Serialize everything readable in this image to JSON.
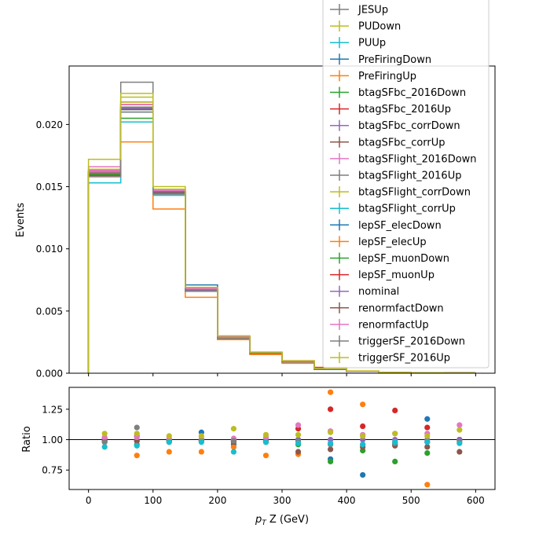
{
  "figure": {
    "main_ylabel": "Events",
    "ratio_ylabel": "Ratio",
    "xlabel_prefix": "p",
    "xlabel_sub": "T",
    "xlabel_suffix": " Z (GeV)"
  },
  "chart_data": [
    {
      "type": "line",
      "step": true,
      "xlabel": "",
      "ylabel": "Events",
      "xlim": [
        -30,
        630
      ],
      "ylim": [
        0,
        0.0247
      ],
      "xticks": [
        0,
        100,
        200,
        300,
        400,
        500,
        600
      ],
      "yticks": [
        0.0,
        0.005,
        0.01,
        0.015,
        0.02
      ],
      "ytick_labels": [
        "0.000",
        "0.005",
        "0.010",
        "0.015",
        "0.020"
      ],
      "bin_edges": [
        0,
        50,
        100,
        150,
        200,
        250,
        300,
        350,
        400,
        450,
        500,
        550,
        600
      ],
      "legend_position": "top-right",
      "series": [
        {
          "name": "JESUp",
          "color": "#7f7f7f",
          "values": [
            0.0159,
            0.0234,
            0.0144,
            0.0066,
            0.0029,
            0.0016,
            0.0009,
            0.00035,
            0.00015,
            7e-05,
            4e-05,
            2e-05
          ]
        },
        {
          "name": "PUDown",
          "color": "#bcbd22",
          "values": [
            0.0164,
            0.0222,
            0.0148,
            0.0068,
            0.003,
            0.0017,
            0.0009,
            0.00036,
            0.00016,
            7e-05,
            4e-05,
            2e-05
          ]
        },
        {
          "name": "PUUp",
          "color": "#17becf",
          "values": [
            0.0153,
            0.0202,
            0.0143,
            0.0066,
            0.0027,
            0.0016,
            0.0009,
            0.00034,
            0.00015,
            7e-05,
            4e-05,
            2e-05
          ]
        },
        {
          "name": "PreFiringDown",
          "color": "#1f77b4",
          "values": [
            0.016,
            0.0212,
            0.0146,
            0.0071,
            0.0028,
            0.0016,
            0.0009,
            0.00033,
            0.00014,
            7e-05,
            4e-05,
            2e-05
          ]
        },
        {
          "name": "PreFiringUp",
          "color": "#ff7f0e",
          "values": [
            0.0158,
            0.0186,
            0.0132,
            0.0061,
            0.0027,
            0.0015,
            0.0008,
            0.00047,
            0.00018,
            6e-05,
            3e-05,
            2e-05
          ]
        },
        {
          "name": "btagSFbc_2016Down",
          "color": "#2ca02c",
          "values": [
            0.0162,
            0.0205,
            0.0145,
            0.0067,
            0.0029,
            0.0016,
            0.0009,
            0.00031,
            0.00015,
            6e-05,
            4e-05,
            2e-05
          ]
        },
        {
          "name": "btagSFbc_2016Up",
          "color": "#d62728",
          "values": [
            0.0162,
            0.0218,
            0.0146,
            0.0067,
            0.0029,
            0.0016,
            0.0009,
            0.00044,
            0.00017,
            8e-05,
            4e-05,
            2e-05
          ]
        },
        {
          "name": "btagSFbc_corrDown",
          "color": "#9467bd",
          "values": [
            0.0161,
            0.0212,
            0.0146,
            0.0067,
            0.0029,
            0.0016,
            0.0009,
            0.00036,
            0.00016,
            7e-05,
            4e-05,
            2e-05
          ]
        },
        {
          "name": "btagSFbc_corrUp",
          "color": "#8c564b",
          "values": [
            0.0161,
            0.0214,
            0.0146,
            0.0067,
            0.0029,
            0.0016,
            0.0009,
            0.00036,
            0.00016,
            7e-05,
            4e-05,
            2e-05
          ]
        },
        {
          "name": "btagSFlight_2016Down",
          "color": "#e377c2",
          "values": [
            0.0166,
            0.0216,
            0.0147,
            0.0067,
            0.0029,
            0.0016,
            0.001,
            0.00038,
            0.00016,
            7e-05,
            4e-05,
            2e-05
          ]
        },
        {
          "name": "btagSFlight_2016Up",
          "color": "#7f7f7f",
          "values": [
            0.0161,
            0.0214,
            0.0146,
            0.0067,
            0.0029,
            0.0016,
            0.0009,
            0.00036,
            0.00016,
            7e-05,
            4e-05,
            2e-05
          ]
        },
        {
          "name": "btagSFlight_corrDown",
          "color": "#bcbd22",
          "values": [
            0.0162,
            0.0218,
            0.0147,
            0.0067,
            0.0029,
            0.0016,
            0.0009,
            0.00036,
            0.00016,
            7e-05,
            4e-05,
            2e-05
          ]
        },
        {
          "name": "btagSFlight_corrUp",
          "color": "#17becf",
          "values": [
            0.016,
            0.021,
            0.0145,
            0.0066,
            0.0028,
            0.0016,
            0.0009,
            0.00035,
            0.00015,
            7e-05,
            4e-05,
            2e-05
          ]
        },
        {
          "name": "lepSF_elecDown",
          "color": "#1f77b4",
          "values": [
            0.0161,
            0.0213,
            0.0146,
            0.0067,
            0.0029,
            0.0016,
            0.0009,
            0.00033,
            0.00014,
            7e-05,
            4e-05,
            2e-05
          ]
        },
        {
          "name": "lepSF_elecUp",
          "color": "#ff7f0e",
          "values": [
            0.0162,
            0.0216,
            0.0147,
            0.0067,
            0.0029,
            0.0016,
            0.0009,
            0.00038,
            0.00016,
            7e-05,
            4e-05,
            2e-05
          ]
        },
        {
          "name": "lepSF_muonDown",
          "color": "#2ca02c",
          "values": [
            0.016,
            0.0212,
            0.0145,
            0.0066,
            0.0028,
            0.0016,
            0.0009,
            0.0003,
            0.00015,
            6e-05,
            4e-05,
            2e-05
          ]
        },
        {
          "name": "lepSF_muonUp",
          "color": "#d62728",
          "values": [
            0.0163,
            0.0216,
            0.0147,
            0.0068,
            0.0029,
            0.0016,
            0.0009,
            0.00039,
            0.00017,
            8e-05,
            4e-05,
            2e-05
          ]
        },
        {
          "name": "nominal",
          "color": "#9467bd",
          "values": [
            0.0161,
            0.0213,
            0.0146,
            0.0067,
            0.0029,
            0.0016,
            0.0009,
            0.00036,
            0.00016,
            7e-05,
            4e-05,
            2e-05
          ]
        },
        {
          "name": "renormfactDown",
          "color": "#8c564b",
          "values": [
            0.0159,
            0.0212,
            0.0145,
            0.0066,
            0.0028,
            0.0016,
            0.0009,
            0.00034,
            0.00015,
            7e-05,
            4e-05,
            2e-05
          ]
        },
        {
          "name": "renormfactUp",
          "color": "#e377c2",
          "values": [
            0.0163,
            0.0216,
            0.0147,
            0.0068,
            0.0029,
            0.0016,
            0.001,
            0.00038,
            0.00017,
            7e-05,
            4e-05,
            2e-05
          ]
        },
        {
          "name": "triggerSF_2016Down",
          "color": "#7f7f7f",
          "values": [
            0.0158,
            0.021,
            0.0144,
            0.0066,
            0.0028,
            0.0016,
            0.0009,
            0.00035,
            0.00015,
            7e-05,
            4e-05,
            2e-05
          ]
        },
        {
          "name": "triggerSF_2016Up",
          "color": "#bcbd22",
          "values": [
            0.0172,
            0.0225,
            0.015,
            0.0069,
            0.003,
            0.0017,
            0.001,
            0.00038,
            0.00017,
            7e-05,
            4e-05,
            2e-05
          ]
        }
      ]
    },
    {
      "type": "scatter",
      "xlabel": "p_T Z (GeV)",
      "ylabel": "Ratio",
      "xlim": [
        -30,
        630
      ],
      "ylim": [
        0.59,
        1.43
      ],
      "xticks": [
        0,
        100,
        200,
        300,
        400,
        500,
        600
      ],
      "xtick_labels": [
        "0",
        "100",
        "200",
        "300",
        "400",
        "500",
        "600"
      ],
      "yticks": [
        0.75,
        1.0,
        1.25
      ],
      "ytick_labels": [
        "0.75",
        "1.00",
        "1.25"
      ],
      "reference_line": 1.0,
      "x": [
        25,
        75,
        125,
        175,
        225,
        275,
        325,
        375,
        425,
        475,
        525,
        575
      ],
      "series": [
        {
          "color": "#1f77b4",
          "values": [
            0.99,
            0.99,
            1.0,
            1.06,
            0.96,
            0.99,
            1.0,
            0.84,
            0.71,
            0.96,
            1.17,
            1.0
          ]
        },
        {
          "color": "#ff7f0e",
          "values": [
            0.98,
            0.87,
            0.9,
            0.9,
            0.94,
            0.87,
            0.88,
            1.39,
            1.29,
            0.98,
            0.63,
            1.0
          ]
        },
        {
          "color": "#2ca02c",
          "values": [
            1.01,
            0.96,
            0.99,
            1.0,
            0.99,
            0.98,
            0.96,
            0.82,
            0.91,
            0.82,
            0.89,
            1.0
          ]
        },
        {
          "color": "#d62728",
          "values": [
            1.01,
            1.03,
            1.0,
            1.0,
            1.0,
            1.0,
            1.09,
            1.25,
            1.11,
            1.24,
            1.1,
            1.0
          ]
        },
        {
          "color": "#9467bd",
          "values": [
            1.0,
            1.0,
            1.0,
            1.0,
            1.0,
            1.0,
            1.0,
            1.0,
            1.0,
            1.0,
            1.0,
            1.0
          ]
        },
        {
          "color": "#8c564b",
          "values": [
            0.99,
            0.99,
            0.99,
            0.99,
            0.98,
            0.99,
            0.9,
            0.92,
            0.94,
            0.95,
            0.94,
            0.9
          ]
        },
        {
          "color": "#e377c2",
          "values": [
            1.02,
            1.02,
            1.01,
            1.01,
            1.01,
            1.02,
            1.12,
            1.07,
            1.04,
            1.05,
            1.05,
            1.12
          ]
        },
        {
          "color": "#7f7f7f",
          "values": [
            0.98,
            1.1,
            0.98,
            0.99,
            0.99,
            0.98,
            0.99,
            0.96,
            0.96,
            0.97,
            0.98,
            0.98
          ]
        },
        {
          "color": "#bcbd22",
          "values": [
            1.05,
            1.05,
            1.03,
            1.03,
            1.09,
            1.04,
            1.04,
            1.06,
            1.03,
            1.05,
            1.03,
            1.08
          ]
        },
        {
          "color": "#17becf",
          "values": [
            0.94,
            0.95,
            0.98,
            0.98,
            0.9,
            0.98,
            0.97,
            0.97,
            0.96,
            0.98,
            0.98,
            0.97
          ]
        }
      ]
    }
  ]
}
